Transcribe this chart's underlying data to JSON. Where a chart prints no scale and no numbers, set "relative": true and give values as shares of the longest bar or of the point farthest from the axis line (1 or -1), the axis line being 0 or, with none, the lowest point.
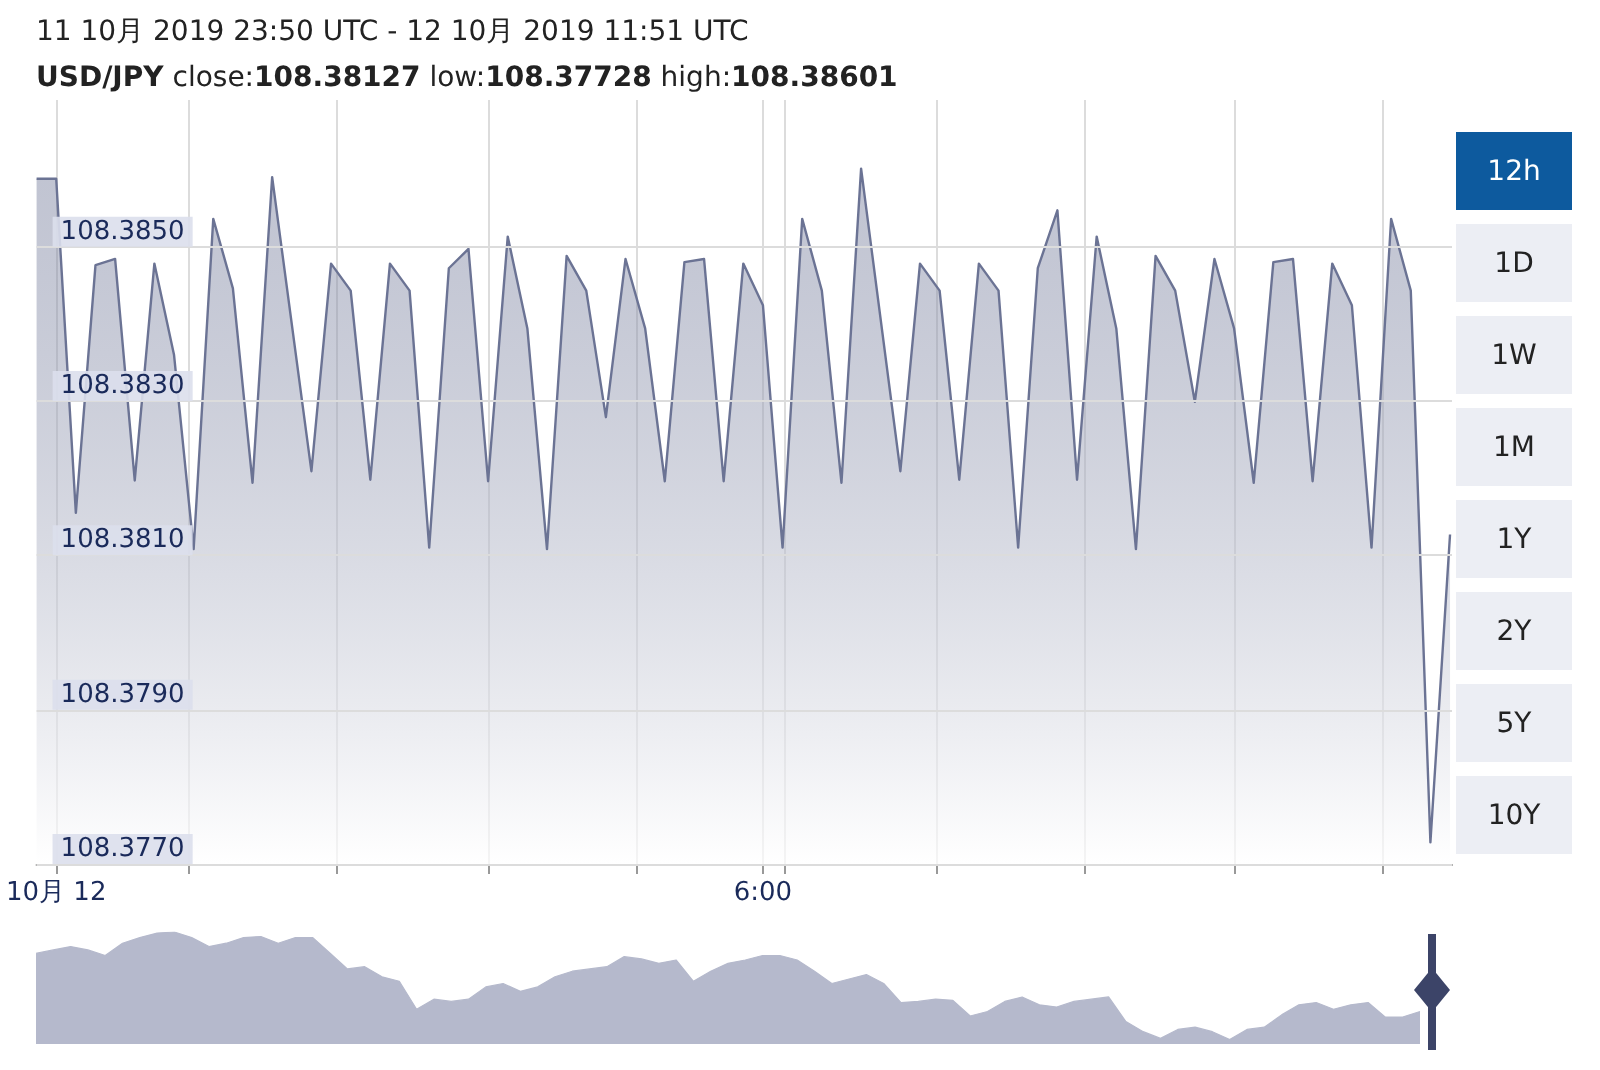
{
  "chart_data": [
    {
      "type": "area",
      "title": "11 10月 2019 23:50 UTC - 12 10月 2019 11:51 UTC",
      "subtitle": "USD/JPY close:108.38127 low:108.37728 high:108.38601",
      "x": [
        "2019-10-11T23:50",
        "2019-10-12T00:00",
        "2019-10-12T00:10",
        "2019-10-12T00:20",
        "2019-10-12T00:30",
        "2019-10-12T00:40",
        "2019-10-12T00:50",
        "2019-10-12T01:00",
        "2019-10-12T01:10",
        "2019-10-12T01:20",
        "2019-10-12T01:30",
        "2019-10-12T01:40",
        "2019-10-12T01:50",
        "2019-10-12T02:10",
        "2019-10-12T02:20",
        "2019-10-12T02:30",
        "2019-10-12T02:40",
        "2019-10-12T02:50",
        "2019-10-12T03:00",
        "2019-10-12T03:10",
        "2019-10-12T03:20",
        "2019-10-12T03:30",
        "2019-10-12T03:40",
        "2019-10-12T03:50",
        "2019-10-12T04:00",
        "2019-10-12T04:10",
        "2019-10-12T04:20",
        "2019-10-12T04:30",
        "2019-10-12T04:40",
        "2019-10-12T04:50",
        "2019-10-12T05:00",
        "2019-10-12T05:10",
        "2019-10-12T05:20",
        "2019-10-12T05:30",
        "2019-10-12T05:40",
        "2019-10-12T05:50",
        "2019-10-12T06:00",
        "2019-10-12T06:10",
        "2019-10-12T06:20",
        "2019-10-12T06:30",
        "2019-10-12T06:40",
        "2019-10-12T06:50",
        "2019-10-12T07:10",
        "2019-10-12T07:20",
        "2019-10-12T07:30",
        "2019-10-12T07:40",
        "2019-10-12T07:50",
        "2019-10-12T08:00",
        "2019-10-12T08:10",
        "2019-10-12T08:20",
        "2019-10-12T08:30",
        "2019-10-12T08:40",
        "2019-10-12T08:50",
        "2019-10-12T09:00",
        "2019-10-12T09:10",
        "2019-10-12T09:20",
        "2019-10-12T09:30",
        "2019-10-12T09:40",
        "2019-10-12T09:50",
        "2019-10-12T10:00",
        "2019-10-12T10:10",
        "2019-10-12T10:20",
        "2019-10-12T10:30",
        "2019-10-12T10:40",
        "2019-10-12T10:50",
        "2019-10-12T11:00",
        "2019-10-12T11:10",
        "2019-10-12T11:20",
        "2019-10-12T11:30",
        "2019-10-12T11:40",
        "2019-10-12T11:50"
      ],
      "series": [
        {
          "color": "#6b7394",
          "values": [
            108.38588,
            108.38588,
            108.38155,
            108.38476,
            108.38484,
            108.38197,
            108.38478,
            108.3836,
            108.38108,
            108.38536,
            108.38446,
            108.38194,
            108.3859,
            108.38209,
            108.38478,
            108.38443,
            108.38198,
            108.38478,
            108.38443,
            108.3811,
            108.38472,
            108.38497,
            108.38196,
            108.38513,
            108.38394,
            108.38108,
            108.38488,
            108.38443,
            108.38279,
            108.38484,
            108.38394,
            108.38196,
            108.3848,
            108.38484,
            108.38196,
            108.38478,
            108.38424,
            108.3811,
            108.38536,
            108.38443,
            108.38194,
            108.38601,
            108.38209,
            108.38478,
            108.38443,
            108.38198,
            108.38478,
            108.38443,
            108.3811,
            108.38472,
            108.38547,
            108.38198,
            108.38513,
            108.38394,
            108.38108,
            108.38488,
            108.38443,
            108.38299,
            108.38484,
            108.38394,
            108.38194,
            108.3848,
            108.38484,
            108.38196,
            108.38478,
            108.38424,
            108.3811,
            108.38536,
            108.38443,
            108.37728,
            108.38127
          ]
        }
      ],
      "xlim": [
        "2019-10-11T23:50",
        "2019-10-12T11:51"
      ],
      "xticks": [
        {
          "value": "2019-10-12T00:00",
          "label": "10月 12"
        },
        {
          "value": "2019-10-12T01:07",
          "label": null
        },
        {
          "value": "2019-10-12T02:23",
          "label": null
        },
        {
          "value": "2019-10-12T03:40",
          "label": null
        },
        {
          "value": "2019-10-12T04:56",
          "label": null
        },
        {
          "value": "2019-10-12T06:00",
          "label": "6:00"
        },
        {
          "value": "2019-10-12T06:11",
          "label": null
        },
        {
          "value": "2019-10-12T07:28",
          "label": null
        },
        {
          "value": "2019-10-12T08:44",
          "label": null
        },
        {
          "value": "2019-10-12T10:00",
          "label": null
        },
        {
          "value": "2019-10-12T11:16",
          "label": null
        }
      ],
      "ylim": [
        108.377,
        108.3869
      ],
      "yticks": [
        {
          "value": 108.377,
          "label": "108.3770"
        },
        {
          "value": 108.379,
          "label": "108.3790"
        },
        {
          "value": 108.381,
          "label": "108.3810"
        },
        {
          "value": 108.383,
          "label": "108.3830"
        },
        {
          "value": 108.385,
          "label": "108.3850"
        }
      ],
      "grid": true,
      "marker": "none",
      "line_style": "solid",
      "annotations": [
        "12h",
        "1D",
        "1W",
        "1M",
        "1Y",
        "2Y",
        "5Y",
        "10Y"
      ]
    },
    {
      "type": "area",
      "relative": true,
      "categories": [
        null,
        null,
        null,
        null,
        null,
        null,
        null,
        null,
        null,
        null,
        null,
        null,
        null,
        null,
        null,
        null,
        null,
        null,
        null,
        null,
        null,
        null,
        null,
        null,
        null,
        null,
        null,
        null,
        null,
        null,
        null,
        null,
        null,
        null,
        null,
        null,
        null,
        null,
        null,
        null,
        null,
        null,
        null,
        null,
        null,
        null,
        null,
        null,
        null,
        null,
        null,
        null,
        null,
        null,
        null,
        null,
        null,
        null,
        null,
        null,
        null,
        null,
        null,
        null,
        null,
        null,
        null,
        null,
        null,
        null,
        null,
        null,
        null,
        null,
        null,
        null,
        null,
        null,
        null,
        null,
        null
      ],
      "series": [
        {
          "color": "#b5b9cc",
          "values": [
            0.81,
            0.84,
            0.87,
            0.84,
            0.79,
            0.9,
            0.95,
            0.99,
            1,
            0.95,
            0.87,
            0.9,
            0.95,
            0.96,
            0.9,
            0.95,
            0.95,
            0.81,
            0.67,
            0.69,
            0.6,
            0.56,
            0.31,
            0.4,
            0.38,
            0.4,
            0.51,
            0.54,
            0.47,
            0.51,
            0.6,
            0.65,
            0.67,
            0.69,
            0.78,
            0.76,
            0.72,
            0.75,
            0.56,
            0.65,
            0.72,
            0.75,
            0.79,
            0.79,
            0.75,
            0.65,
            0.54,
            0.58,
            0.62,
            0.54,
            0.37,
            0.38,
            0.4,
            0.39,
            0.25,
            0.29,
            0.38,
            0.42,
            0.35,
            0.33,
            0.38,
            0.4,
            0.42,
            0.2,
            0.11,
            0.05,
            0.13,
            0.15,
            0.11,
            0.04,
            0.13,
            0.15,
            0.26,
            0.35,
            0.37,
            0.31,
            0.35,
            0.37,
            0.24,
            0.24,
            0.29
          ]
        }
      ],
      "marker": "none"
    }
  ]
}
